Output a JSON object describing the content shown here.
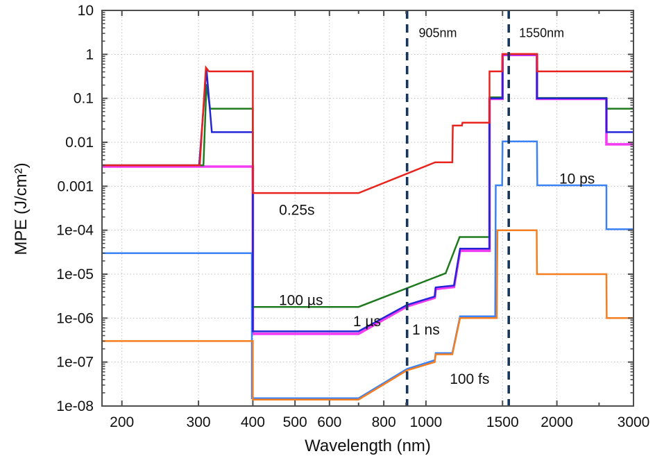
{
  "page": {
    "background": "#ffffff"
  },
  "chart_data": {
    "type": "line",
    "title": "",
    "xlabel": "Wavelength (nm)",
    "ylabel": "MPE (J/cm²)",
    "x_scale": "log",
    "y_scale": "log",
    "xlim": [
      180,
      3000
    ],
    "ylim": [
      1e-08,
      10
    ],
    "grid": true,
    "legend": "none (inline labels)",
    "grid_color": "#bfbfbf",
    "frame_color": "#4d4d4d",
    "text_color": "#111111",
    "x_ticks": [
      200,
      300,
      400,
      500,
      600,
      800,
      1000,
      1500,
      2000,
      3000
    ],
    "x_tick_labels": [
      "200",
      "300",
      "400",
      "500",
      "600",
      "800",
      "1000",
      "1500",
      "2000",
      "3000"
    ],
    "x_minor_ticks": [
      700,
      900,
      2500
    ],
    "y_ticks": [
      10,
      1,
      0.1,
      0.01,
      0.001,
      0.0001,
      1e-05,
      1e-06,
      1e-07,
      1e-08
    ],
    "y_tick_labels": [
      "10",
      "1",
      "0.1",
      "0.01",
      "0.001",
      "1e-04",
      "1e-05",
      "1e-06",
      "1e-07",
      "1e-08"
    ],
    "vlines": [
      {
        "x": 905,
        "color": "#17365d",
        "style": "dashed"
      },
      {
        "x": 1550,
        "color": "#17365d",
        "style": "dashed"
      }
    ],
    "annotations": [
      {
        "text": "905nm",
        "x": 1065,
        "y": 3.1,
        "size": 18
      },
      {
        "text": "1550nm",
        "x": 1845,
        "y": 3.1,
        "size": 18
      },
      {
        "text": "0.25s",
        "x": 505,
        "y": 0.00029,
        "size": 21
      },
      {
        "text": "100 µs",
        "x": 516,
        "y": 2.6e-06,
        "size": 21
      },
      {
        "text": "1 µs",
        "x": 732,
        "y": 8.5e-07,
        "size": 21
      },
      {
        "text": "1 ns",
        "x": 1000,
        "y": 5.5e-07,
        "size": 21
      },
      {
        "text": "10 ps",
        "x": 2225,
        "y": 0.0015,
        "size": 21
      },
      {
        "text": "100 fs",
        "x": 1260,
        "y": 4.2e-08,
        "size": 21
      }
    ],
    "series": [
      {
        "name": "1 ns",
        "slug": "1-ns",
        "color": "#f23cf2",
        "width": 3.6,
        "points": [
          [
            180,
            0.0028
          ],
          [
            400,
            0.0028
          ],
          [
            400,
            4.4e-07
          ],
          [
            700,
            4.4e-07
          ],
          [
            905,
            1.85e-06
          ],
          [
            1048,
            2.9e-06
          ],
          [
            1053,
            4.6e-06
          ],
          [
            1160,
            5.1e-06
          ],
          [
            1198,
            3.4e-05
          ],
          [
            1400,
            3.4e-05
          ],
          [
            1400,
            0.097
          ],
          [
            1500,
            0.097
          ],
          [
            1500,
            0.97
          ],
          [
            1800,
            0.97
          ],
          [
            1800,
            0.097
          ],
          [
            2600,
            0.097
          ],
          [
            2600,
            0.009
          ],
          [
            3000,
            0.009
          ]
        ]
      },
      {
        "name": "10 ps",
        "slug": "10-ps",
        "color": "#3b82f6",
        "width": 2.5,
        "points": [
          [
            180,
            3e-05
          ],
          [
            398,
            3e-05
          ],
          [
            398,
            1.5e-08
          ],
          [
            700,
            1.5e-08
          ],
          [
            905,
            7e-08
          ],
          [
            1048,
            1.1e-07
          ],
          [
            1053,
            1.6e-07
          ],
          [
            1150,
            1.6e-07
          ],
          [
            1198,
            1.1e-06
          ],
          [
            1443,
            1.1e-06
          ],
          [
            1447,
            0.00105
          ],
          [
            1497,
            0.00105
          ],
          [
            1500,
            0.0105
          ],
          [
            1800,
            0.0105
          ],
          [
            1803,
            0.00105
          ],
          [
            2600,
            0.00105
          ],
          [
            2600,
            0.000105
          ],
          [
            3000,
            0.000105
          ]
        ]
      },
      {
        "name": "100 fs",
        "slug": "100-fs",
        "color": "#f57f20",
        "width": 2.5,
        "points": [
          [
            180,
            3e-07
          ],
          [
            400,
            3e-07
          ],
          [
            400,
            1.4e-08
          ],
          [
            700,
            1.4e-08
          ],
          [
            905,
            6.5e-08
          ],
          [
            1048,
            1e-07
          ],
          [
            1053,
            1.5e-07
          ],
          [
            1150,
            1.5e-07
          ],
          [
            1198,
            1e-06
          ],
          [
            1455,
            1e-06
          ],
          [
            1460,
            0.0001
          ],
          [
            1797,
            0.0001
          ],
          [
            1800,
            1e-05
          ],
          [
            2600,
            1e-05
          ],
          [
            2603,
            1e-06
          ],
          [
            3000,
            1e-06
          ]
        ]
      },
      {
        "name": "100 µs",
        "slug": "100-us",
        "color": "#1f7a1f",
        "width": 2.5,
        "points": [
          [
            180,
            0.003
          ],
          [
            308,
            0.003
          ],
          [
            313,
            0.21
          ],
          [
            319,
            0.058
          ],
          [
            400,
            0.058
          ],
          [
            400,
            1.8e-06
          ],
          [
            700,
            1.8e-06
          ],
          [
            1050,
            8.5e-06
          ],
          [
            1110,
            1.05e-05
          ],
          [
            1195,
            7e-05
          ],
          [
            1400,
            7e-05
          ],
          [
            1400,
            0.105
          ],
          [
            1500,
            0.105
          ],
          [
            1500,
            1.02
          ],
          [
            1800,
            1.02
          ],
          [
            1800,
            0.102
          ],
          [
            2600,
            0.102
          ],
          [
            2600,
            0.058
          ],
          [
            3000,
            0.058
          ]
        ]
      },
      {
        "name": "1 µs",
        "slug": "1-us",
        "color": "#2525d8",
        "width": 2.5,
        "points": [
          [
            180,
            0.003
          ],
          [
            301,
            0.003
          ],
          [
            313,
            0.46
          ],
          [
            322,
            0.017
          ],
          [
            400,
            0.017
          ],
          [
            400,
            5e-07
          ],
          [
            700,
            5e-07
          ],
          [
            905,
            2e-06
          ],
          [
            1048,
            3.1e-06
          ],
          [
            1053,
            5e-06
          ],
          [
            1160,
            5.5e-06
          ],
          [
            1198,
            3.8e-05
          ],
          [
            1400,
            3.8e-05
          ],
          [
            1400,
            0.1
          ],
          [
            1500,
            0.1
          ],
          [
            1500,
            1.0
          ],
          [
            1800,
            1.0
          ],
          [
            1800,
            0.1
          ],
          [
            2600,
            0.1
          ],
          [
            2600,
            0.017
          ],
          [
            3000,
            0.017
          ]
        ]
      },
      {
        "name": "0.25s",
        "slug": "0-25s",
        "color": "#e8231e",
        "width": 2.5,
        "points": [
          [
            180,
            0.003
          ],
          [
            302,
            0.003
          ],
          [
            312,
            0.5
          ],
          [
            317,
            0.41
          ],
          [
            400,
            0.41
          ],
          [
            400,
            0.0007
          ],
          [
            700,
            0.0007
          ],
          [
            1050,
            0.0035
          ],
          [
            1150,
            0.0035
          ],
          [
            1153,
            0.024
          ],
          [
            1210,
            0.024
          ],
          [
            1213,
            0.028
          ],
          [
            1400,
            0.028
          ],
          [
            1400,
            0.41
          ],
          [
            1497,
            0.41
          ],
          [
            1500,
            1.02
          ],
          [
            1800,
            1.02
          ],
          [
            1803,
            0.41
          ],
          [
            3000,
            0.41
          ]
        ]
      }
    ]
  }
}
